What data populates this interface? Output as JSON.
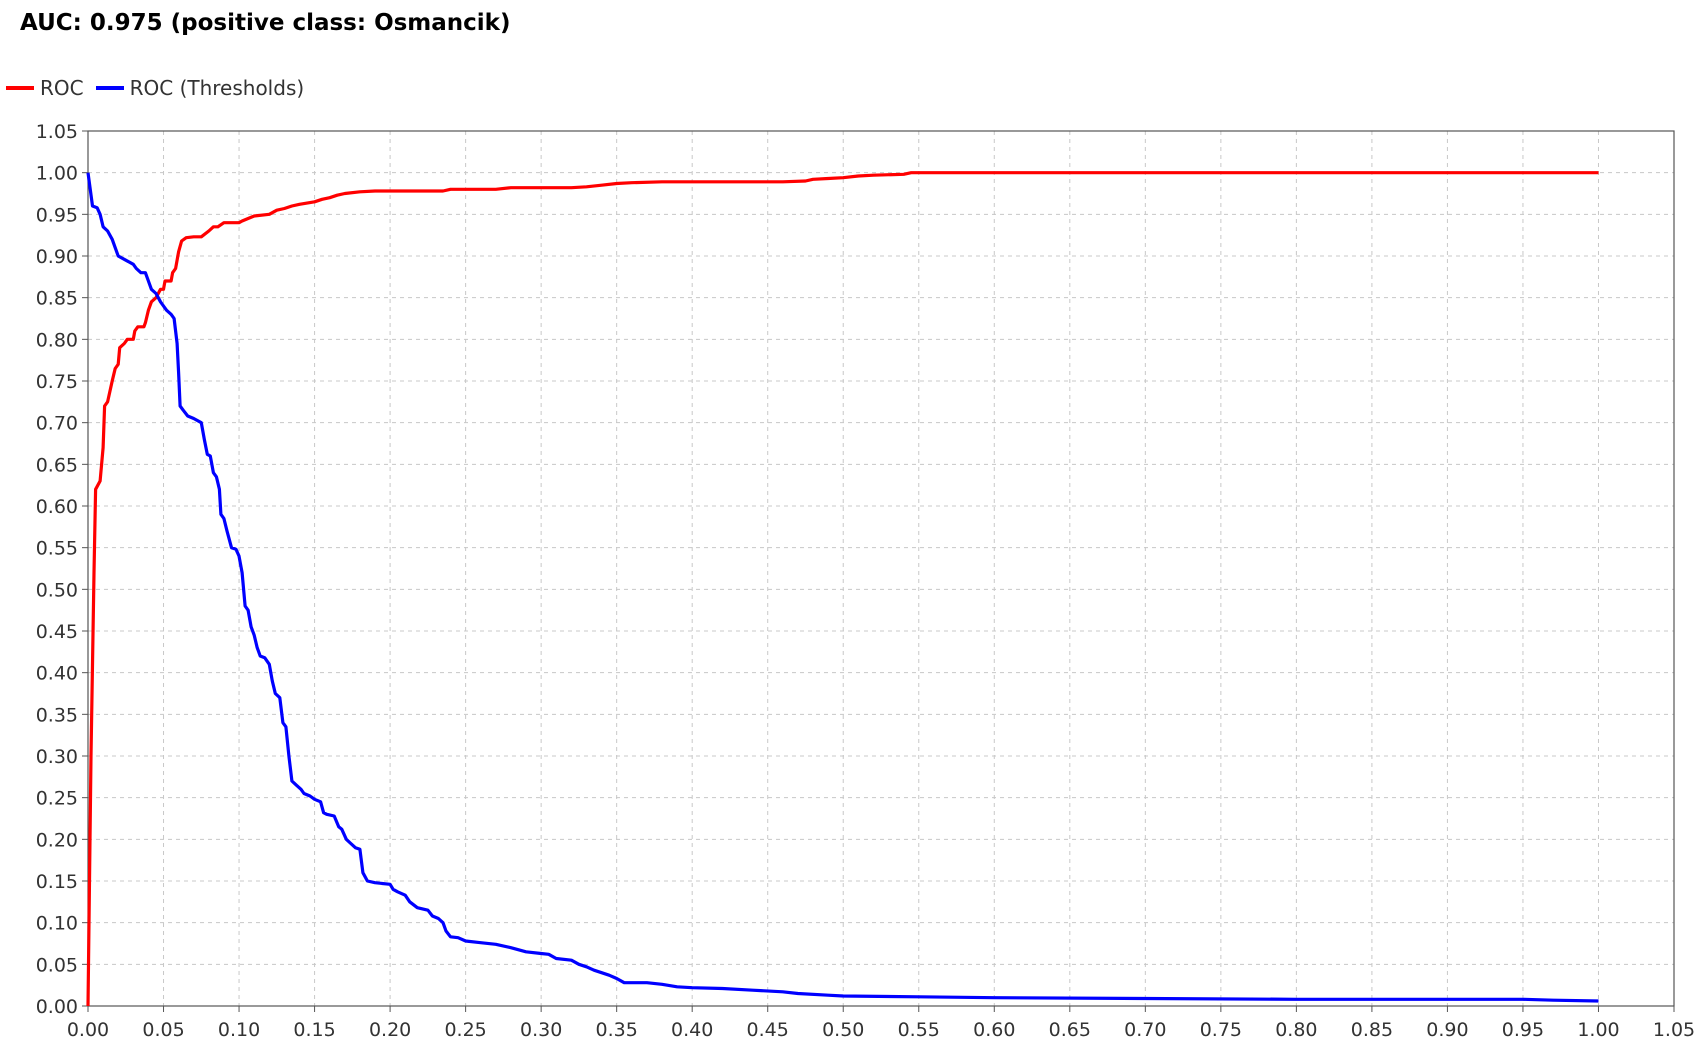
{
  "chart_data": {
    "type": "line",
    "title": "AUC: 0.975 (positive class: Osmancik)",
    "xlabel": "",
    "ylabel": "",
    "xlim": [
      0.0,
      1.05
    ],
    "ylim": [
      0.0,
      1.05
    ],
    "grid": true,
    "legend_position": "top-left",
    "x_ticks": [
      "0.00",
      "0.05",
      "0.10",
      "0.15",
      "0.20",
      "0.25",
      "0.30",
      "0.35",
      "0.40",
      "0.45",
      "0.50",
      "0.55",
      "0.60",
      "0.65",
      "0.70",
      "0.75",
      "0.80",
      "0.85",
      "0.90",
      "0.95",
      "1.00",
      "1.05"
    ],
    "y_ticks": [
      "0.00",
      "0.05",
      "0.10",
      "0.15",
      "0.20",
      "0.25",
      "0.30",
      "0.35",
      "0.40",
      "0.45",
      "0.50",
      "0.55",
      "0.60",
      "0.65",
      "0.70",
      "0.75",
      "0.80",
      "0.85",
      "0.90",
      "0.95",
      "1.00",
      "1.05"
    ],
    "series": [
      {
        "name": "ROC",
        "color": "#ff0000",
        "points": [
          [
            0.0,
            0.0
          ],
          [
            0.002,
            0.3
          ],
          [
            0.004,
            0.52
          ],
          [
            0.005,
            0.62
          ],
          [
            0.008,
            0.63
          ],
          [
            0.01,
            0.67
          ],
          [
            0.011,
            0.72
          ],
          [
            0.013,
            0.725
          ],
          [
            0.016,
            0.75
          ],
          [
            0.018,
            0.765
          ],
          [
            0.02,
            0.77
          ],
          [
            0.021,
            0.79
          ],
          [
            0.024,
            0.795
          ],
          [
            0.026,
            0.8
          ],
          [
            0.03,
            0.8
          ],
          [
            0.031,
            0.81
          ],
          [
            0.033,
            0.815
          ],
          [
            0.037,
            0.815
          ],
          [
            0.038,
            0.82
          ],
          [
            0.04,
            0.835
          ],
          [
            0.042,
            0.845
          ],
          [
            0.045,
            0.85
          ],
          [
            0.048,
            0.86
          ],
          [
            0.05,
            0.86
          ],
          [
            0.051,
            0.87
          ],
          [
            0.055,
            0.87
          ],
          [
            0.056,
            0.88
          ],
          [
            0.058,
            0.885
          ],
          [
            0.06,
            0.905
          ],
          [
            0.062,
            0.918
          ],
          [
            0.065,
            0.922
          ],
          [
            0.07,
            0.923
          ],
          [
            0.075,
            0.923
          ],
          [
            0.08,
            0.93
          ],
          [
            0.083,
            0.935
          ],
          [
            0.086,
            0.935
          ],
          [
            0.09,
            0.94
          ],
          [
            0.1,
            0.94
          ],
          [
            0.102,
            0.942
          ],
          [
            0.106,
            0.945
          ],
          [
            0.11,
            0.948
          ],
          [
            0.12,
            0.95
          ],
          [
            0.125,
            0.955
          ],
          [
            0.13,
            0.957
          ],
          [
            0.135,
            0.96
          ],
          [
            0.14,
            0.962
          ],
          [
            0.15,
            0.965
          ],
          [
            0.155,
            0.968
          ],
          [
            0.16,
            0.97
          ],
          [
            0.165,
            0.973
          ],
          [
            0.17,
            0.975
          ],
          [
            0.18,
            0.977
          ],
          [
            0.19,
            0.978
          ],
          [
            0.21,
            0.978
          ],
          [
            0.235,
            0.978
          ],
          [
            0.24,
            0.98
          ],
          [
            0.27,
            0.98
          ],
          [
            0.28,
            0.982
          ],
          [
            0.32,
            0.982
          ],
          [
            0.33,
            0.983
          ],
          [
            0.34,
            0.985
          ],
          [
            0.35,
            0.987
          ],
          [
            0.36,
            0.988
          ],
          [
            0.38,
            0.989
          ],
          [
            0.46,
            0.989
          ],
          [
            0.475,
            0.99
          ],
          [
            0.48,
            0.992
          ],
          [
            0.49,
            0.993
          ],
          [
            0.5,
            0.994
          ],
          [
            0.51,
            0.996
          ],
          [
            0.52,
            0.997
          ],
          [
            0.54,
            0.998
          ],
          [
            0.545,
            1.0
          ],
          [
            0.6,
            1.0
          ],
          [
            0.8,
            1.0
          ],
          [
            1.0,
            1.0
          ]
        ]
      },
      {
        "name": "ROC (Thresholds)",
        "color": "#0000ff",
        "points": [
          [
            0.0,
            1.0
          ],
          [
            0.003,
            0.96
          ],
          [
            0.006,
            0.958
          ],
          [
            0.008,
            0.95
          ],
          [
            0.01,
            0.935
          ],
          [
            0.013,
            0.93
          ],
          [
            0.016,
            0.92
          ],
          [
            0.018,
            0.91
          ],
          [
            0.02,
            0.9
          ],
          [
            0.025,
            0.895
          ],
          [
            0.03,
            0.89
          ],
          [
            0.032,
            0.885
          ],
          [
            0.035,
            0.88
          ],
          [
            0.038,
            0.88
          ],
          [
            0.04,
            0.87
          ],
          [
            0.042,
            0.86
          ],
          [
            0.045,
            0.855
          ],
          [
            0.048,
            0.845
          ],
          [
            0.05,
            0.84
          ],
          [
            0.052,
            0.835
          ],
          [
            0.055,
            0.83
          ],
          [
            0.057,
            0.825
          ],
          [
            0.058,
            0.81
          ],
          [
            0.059,
            0.795
          ],
          [
            0.06,
            0.76
          ],
          [
            0.061,
            0.72
          ],
          [
            0.063,
            0.715
          ],
          [
            0.066,
            0.708
          ],
          [
            0.07,
            0.705
          ],
          [
            0.075,
            0.7
          ],
          [
            0.077,
            0.68
          ],
          [
            0.079,
            0.662
          ],
          [
            0.081,
            0.66
          ],
          [
            0.083,
            0.64
          ],
          [
            0.085,
            0.635
          ],
          [
            0.087,
            0.62
          ],
          [
            0.088,
            0.59
          ],
          [
            0.09,
            0.585
          ],
          [
            0.092,
            0.57
          ],
          [
            0.095,
            0.55
          ],
          [
            0.098,
            0.548
          ],
          [
            0.1,
            0.54
          ],
          [
            0.102,
            0.52
          ],
          [
            0.104,
            0.48
          ],
          [
            0.106,
            0.475
          ],
          [
            0.108,
            0.455
          ],
          [
            0.11,
            0.445
          ],
          [
            0.112,
            0.43
          ],
          [
            0.114,
            0.42
          ],
          [
            0.117,
            0.418
          ],
          [
            0.12,
            0.41
          ],
          [
            0.122,
            0.39
          ],
          [
            0.124,
            0.375
          ],
          [
            0.127,
            0.37
          ],
          [
            0.129,
            0.34
          ],
          [
            0.131,
            0.335
          ],
          [
            0.133,
            0.3
          ],
          [
            0.135,
            0.27
          ],
          [
            0.138,
            0.265
          ],
          [
            0.141,
            0.26
          ],
          [
            0.143,
            0.255
          ],
          [
            0.147,
            0.252
          ],
          [
            0.15,
            0.248
          ],
          [
            0.154,
            0.245
          ],
          [
            0.156,
            0.232
          ],
          [
            0.158,
            0.23
          ],
          [
            0.163,
            0.228
          ],
          [
            0.166,
            0.215
          ],
          [
            0.168,
            0.212
          ],
          [
            0.171,
            0.2
          ],
          [
            0.174,
            0.195
          ],
          [
            0.177,
            0.19
          ],
          [
            0.18,
            0.188
          ],
          [
            0.182,
            0.16
          ],
          [
            0.185,
            0.15
          ],
          [
            0.19,
            0.148
          ],
          [
            0.2,
            0.146
          ],
          [
            0.202,
            0.14
          ],
          [
            0.205,
            0.137
          ],
          [
            0.21,
            0.133
          ],
          [
            0.213,
            0.125
          ],
          [
            0.218,
            0.118
          ],
          [
            0.225,
            0.115
          ],
          [
            0.228,
            0.108
          ],
          [
            0.232,
            0.105
          ],
          [
            0.235,
            0.1
          ],
          [
            0.237,
            0.09
          ],
          [
            0.24,
            0.083
          ],
          [
            0.245,
            0.082
          ],
          [
            0.25,
            0.078
          ],
          [
            0.26,
            0.076
          ],
          [
            0.27,
            0.074
          ],
          [
            0.28,
            0.07
          ],
          [
            0.29,
            0.065
          ],
          [
            0.3,
            0.063
          ],
          [
            0.305,
            0.062
          ],
          [
            0.31,
            0.057
          ],
          [
            0.32,
            0.055
          ],
          [
            0.325,
            0.05
          ],
          [
            0.33,
            0.047
          ],
          [
            0.335,
            0.043
          ],
          [
            0.34,
            0.04
          ],
          [
            0.345,
            0.037
          ],
          [
            0.35,
            0.033
          ],
          [
            0.355,
            0.028
          ],
          [
            0.37,
            0.028
          ],
          [
            0.38,
            0.026
          ],
          [
            0.39,
            0.023
          ],
          [
            0.4,
            0.022
          ],
          [
            0.42,
            0.021
          ],
          [
            0.44,
            0.019
          ],
          [
            0.46,
            0.017
          ],
          [
            0.47,
            0.015
          ],
          [
            0.49,
            0.013
          ],
          [
            0.5,
            0.012
          ],
          [
            0.55,
            0.011
          ],
          [
            0.6,
            0.01
          ],
          [
            0.7,
            0.009
          ],
          [
            0.8,
            0.008
          ],
          [
            0.9,
            0.008
          ],
          [
            0.95,
            0.008
          ],
          [
            0.97,
            0.007
          ],
          [
            1.0,
            0.006
          ]
        ]
      }
    ]
  }
}
